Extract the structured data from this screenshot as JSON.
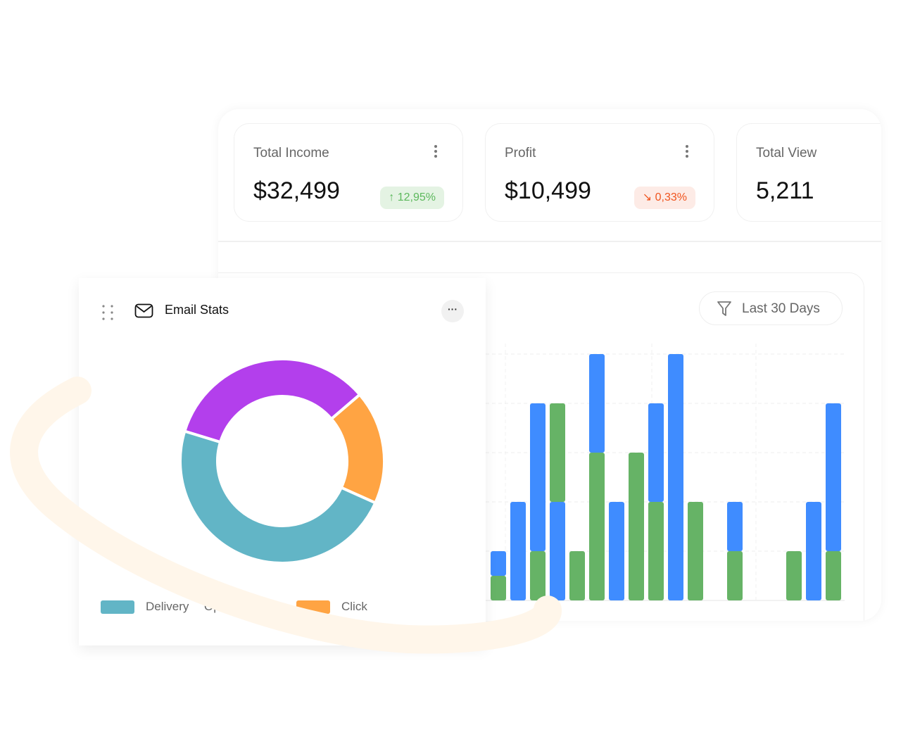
{
  "stats": [
    {
      "label": "Total Income",
      "value": "$32,499",
      "change": "12,95%",
      "trend": "up",
      "badge_bg": "#e4f3e3",
      "badge_fg": "#5cb85c"
    },
    {
      "label": "Profit",
      "value": "$10,499",
      "change": "0,33%",
      "trend": "down",
      "badge_bg": "#fdebe6",
      "badge_fg": "#f0541e"
    },
    {
      "label": "Total View",
      "value": "5,211"
    }
  ],
  "filter": {
    "label": "Last 30 Days"
  },
  "email_stats": {
    "title": "Email Stats"
  },
  "chart_data": [
    {
      "type": "pie",
      "title": "Email Stats",
      "donut": true,
      "slices": [
        {
          "label": "Delivery",
          "value": 48,
          "color": "#62b5c6"
        },
        {
          "label": "Opened",
          "value": 34,
          "color": "#b33fec"
        },
        {
          "label": "Click",
          "value": 18,
          "color": "#ffa443"
        }
      ]
    },
    {
      "type": "bar",
      "stacked": true,
      "ylim": [
        0,
        5
      ],
      "grid": true,
      "series_colors": {
        "green": "#66b366",
        "blue": "#3f8cff"
      },
      "bars": [
        [
          [
            "green",
            0.5
          ],
          [
            "blue",
            0.5
          ]
        ],
        [
          [
            "blue",
            2
          ]
        ],
        [
          [
            "green",
            1
          ],
          [
            "blue",
            3
          ]
        ],
        [
          [
            "blue",
            2
          ],
          [
            "green",
            2
          ]
        ],
        [
          [
            "green",
            1
          ]
        ],
        [
          [
            "green",
            3
          ],
          [
            "blue",
            2
          ]
        ],
        [
          [
            "blue",
            2
          ]
        ],
        [
          [
            "green",
            3
          ]
        ],
        [
          [
            "green",
            2
          ],
          [
            "blue",
            2
          ]
        ],
        [
          [
            "blue",
            5
          ]
        ],
        [
          [
            "green",
            2
          ]
        ],
        [],
        [
          [
            "green",
            1
          ],
          [
            "blue",
            1
          ]
        ],
        [],
        [],
        [
          [
            "green",
            1
          ]
        ],
        [
          [
            "blue",
            2
          ]
        ],
        [
          [
            "green",
            1
          ],
          [
            "blue",
            3
          ]
        ]
      ]
    }
  ]
}
